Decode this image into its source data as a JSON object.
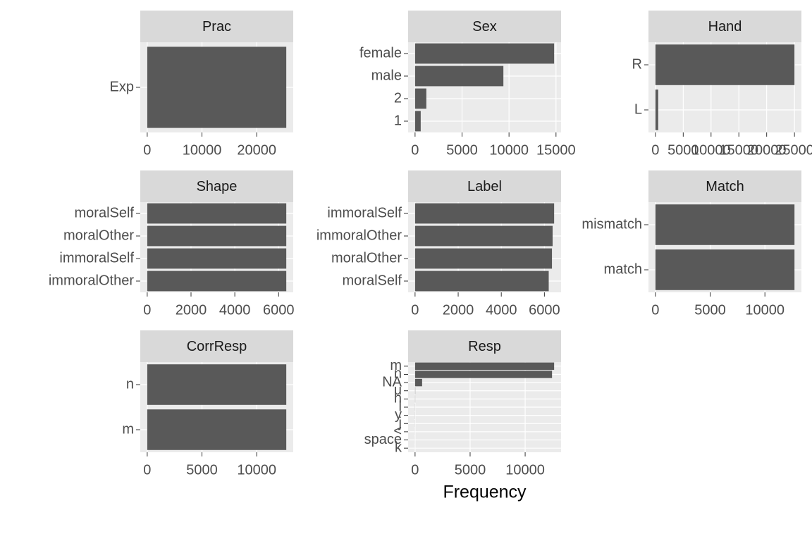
{
  "chart_data": [
    {
      "type": "bar",
      "orientation": "horizontal",
      "title": "Prac",
      "categories": [
        "Exp"
      ],
      "values": [
        25400
      ],
      "color": "#595959",
      "xlim": [
        -1270,
        26670
      ],
      "xticks": [
        0,
        10000,
        20000
      ],
      "grid": true
    },
    {
      "type": "bar",
      "orientation": "horizontal",
      "title": "Sex",
      "categories": [
        "female",
        "male",
        "2",
        "1"
      ],
      "values": [
        14800,
        9400,
        1200,
        600
      ],
      "color": "#595959",
      "xlim": [
        -740,
        15540
      ],
      "xticks": [
        0,
        5000,
        10000,
        15000
      ],
      "grid": true
    },
    {
      "type": "bar",
      "orientation": "horizontal",
      "title": "Hand",
      "categories": [
        "R",
        "L"
      ],
      "values": [
        25000,
        500
      ],
      "color": "#595959",
      "xlim": [
        -1250,
        26250
      ],
      "xticks": [
        0,
        5000,
        10000,
        15000,
        20000,
        25000
      ],
      "grid": true
    },
    {
      "type": "bar",
      "orientation": "horizontal",
      "title": "Shape",
      "categories": [
        "moralSelf",
        "moralOther",
        "immoralSelf",
        "immoralOther"
      ],
      "values": [
        6350,
        6350,
        6350,
        6350
      ],
      "color": "#595959",
      "xlim": [
        -317.5,
        6667.5
      ],
      "xticks": [
        0,
        2000,
        4000,
        6000
      ],
      "grid": true
    },
    {
      "type": "bar",
      "orientation": "horizontal",
      "title": "Label",
      "categories": [
        "immoralSelf",
        "immoralOther",
        "moralOther",
        "moralSelf"
      ],
      "values": [
        6450,
        6380,
        6350,
        6200
      ],
      "color": "#595959",
      "xlim": [
        -322.5,
        6772.5
      ],
      "xticks": [
        0,
        2000,
        4000,
        6000
      ],
      "grid": true
    },
    {
      "type": "bar",
      "orientation": "horizontal",
      "title": "Match",
      "categories": [
        "mismatch",
        "match"
      ],
      "values": [
        12700,
        12700
      ],
      "color": "#595959",
      "xlim": [
        -635,
        13335
      ],
      "xticks": [
        0,
        5000,
        10000
      ],
      "grid": true
    },
    {
      "type": "bar",
      "orientation": "horizontal",
      "title": "CorrResp",
      "categories": [
        "n",
        "m"
      ],
      "values": [
        12700,
        12700
      ],
      "color": "#595959",
      "xlim": [
        -635,
        13335
      ],
      "xticks": [
        0,
        5000,
        10000
      ],
      "grid": true
    },
    {
      "type": "bar",
      "orientation": "horizontal",
      "title": "Resp",
      "categories": [
        "m",
        "n",
        "NA",
        "u",
        "h",
        "l",
        "y",
        "j",
        "<",
        "space",
        "k"
      ],
      "values": [
        12630,
        12440,
        640,
        20,
        15,
        10,
        8,
        6,
        4,
        3,
        2
      ],
      "color": "#595959",
      "xlim": [
        -631.5,
        13261.5
      ],
      "xticks": [
        0,
        5000,
        10000
      ],
      "grid": true,
      "xlabel": "Frequency"
    }
  ]
}
